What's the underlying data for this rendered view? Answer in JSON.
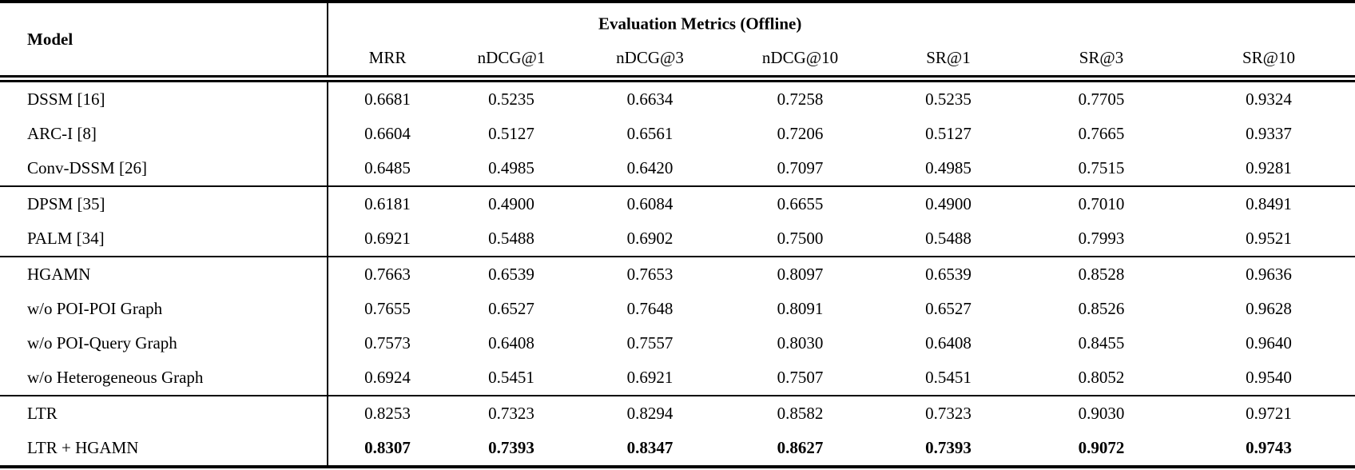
{
  "colors": {
    "background": "#ffffff",
    "text": "#000000",
    "rule": "#000000"
  },
  "table": {
    "model_header": "Model",
    "metrics_group_header": "Evaluation Metrics (Offline)",
    "columns": [
      "MRR",
      "nDCG@1",
      "nDCG@3",
      "nDCG@10",
      "SR@1",
      "SR@3",
      "SR@10"
    ],
    "groups": [
      {
        "rows": [
          {
            "model": "DSSM [16]",
            "values": [
              "0.6681",
              "0.5235",
              "0.6634",
              "0.7258",
              "0.5235",
              "0.7705",
              "0.9324"
            ],
            "bold": false
          },
          {
            "model": "ARC-I [8]",
            "values": [
              "0.6604",
              "0.5127",
              "0.6561",
              "0.7206",
              "0.5127",
              "0.7665",
              "0.9337"
            ],
            "bold": false
          },
          {
            "model": "Conv-DSSM [26]",
            "values": [
              "0.6485",
              "0.4985",
              "0.6420",
              "0.7097",
              "0.4985",
              "0.7515",
              "0.9281"
            ],
            "bold": false
          }
        ]
      },
      {
        "rows": [
          {
            "model": "DPSM [35]",
            "values": [
              "0.6181",
              "0.4900",
              "0.6084",
              "0.6655",
              "0.4900",
              "0.7010",
              "0.8491"
            ],
            "bold": false
          },
          {
            "model": "PALM [34]",
            "values": [
              "0.6921",
              "0.5488",
              "0.6902",
              "0.7500",
              "0.5488",
              "0.7993",
              "0.9521"
            ],
            "bold": false
          }
        ]
      },
      {
        "rows": [
          {
            "model": "HGAMN",
            "values": [
              "0.7663",
              "0.6539",
              "0.7653",
              "0.8097",
              "0.6539",
              "0.8528",
              "0.9636"
            ],
            "bold": false
          },
          {
            "model": "w/o POI-POI Graph",
            "values": [
              "0.7655",
              "0.6527",
              "0.7648",
              "0.8091",
              "0.6527",
              "0.8526",
              "0.9628"
            ],
            "bold": false
          },
          {
            "model": "w/o POI-Query Graph",
            "values": [
              "0.7573",
              "0.6408",
              "0.7557",
              "0.8030",
              "0.6408",
              "0.8455",
              "0.9640"
            ],
            "bold": false
          },
          {
            "model": "w/o Heterogeneous Graph",
            "values": [
              "0.6924",
              "0.5451",
              "0.6921",
              "0.7507",
              "0.5451",
              "0.8052",
              "0.9540"
            ],
            "bold": false
          }
        ]
      },
      {
        "rows": [
          {
            "model": "LTR",
            "values": [
              "0.8253",
              "0.7323",
              "0.8294",
              "0.8582",
              "0.7323",
              "0.9030",
              "0.9721"
            ],
            "bold": false
          },
          {
            "model": "LTR + HGAMN",
            "values": [
              "0.8307",
              "0.7393",
              "0.8347",
              "0.8627",
              "0.7393",
              "0.9072",
              "0.9743"
            ],
            "bold": true
          }
        ]
      }
    ]
  }
}
